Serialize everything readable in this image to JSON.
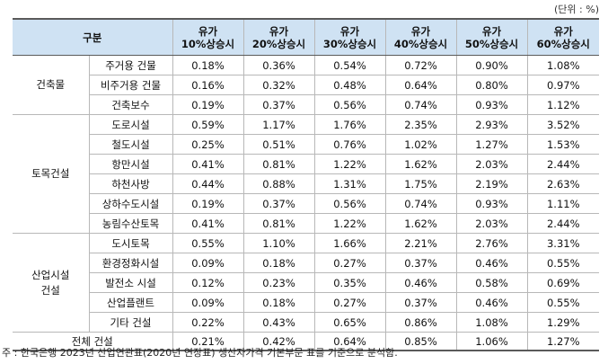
{
  "unit_label": "(단위 : %)",
  "header": {
    "category": "구분",
    "columns": [
      {
        "l1": "유가",
        "l2": "10%상승시"
      },
      {
        "l1": "유가",
        "l2": "20%상승시"
      },
      {
        "l1": "유가",
        "l2": "30%상승시"
      },
      {
        "l1": "유가",
        "l2": "40%상승시"
      },
      {
        "l1": "유가",
        "l2": "50%상승시"
      },
      {
        "l1": "유가",
        "l2": "60%상승시"
      }
    ]
  },
  "groups": [
    {
      "name": "건축물",
      "rows": [
        {
          "label": "주거용 건물",
          "values": [
            "0.18%",
            "0.36%",
            "0.54%",
            "0.72%",
            "0.90%",
            "1.08%"
          ]
        },
        {
          "label": "비주거용 건물",
          "values": [
            "0.16%",
            "0.32%",
            "0.48%",
            "0.64%",
            "0.80%",
            "0.97%"
          ]
        },
        {
          "label": "건축보수",
          "values": [
            "0.19%",
            "0.37%",
            "0.56%",
            "0.74%",
            "0.93%",
            "1.12%"
          ]
        }
      ]
    },
    {
      "name": "토목건설",
      "rows": [
        {
          "label": "도로시설",
          "values": [
            "0.59%",
            "1.17%",
            "1.76%",
            "2.35%",
            "2.93%",
            "3.52%"
          ]
        },
        {
          "label": "철도시설",
          "values": [
            "0.25%",
            "0.51%",
            "0.76%",
            "1.02%",
            "1.27%",
            "1.53%"
          ]
        },
        {
          "label": "항만시설",
          "values": [
            "0.41%",
            "0.81%",
            "1.22%",
            "1.62%",
            "2.03%",
            "2.44%"
          ]
        },
        {
          "label": "하천사방",
          "values": [
            "0.44%",
            "0.88%",
            "1.31%",
            "1.75%",
            "2.19%",
            "2.63%"
          ]
        },
        {
          "label": "상하수도시설",
          "values": [
            "0.19%",
            "0.37%",
            "0.56%",
            "0.74%",
            "0.93%",
            "1.11%"
          ]
        },
        {
          "label": "농림수산토목",
          "values": [
            "0.41%",
            "0.81%",
            "1.22%",
            "1.62%",
            "2.03%",
            "2.44%"
          ]
        }
      ]
    },
    {
      "name_l1": "산업시설",
      "name_l2": "건설",
      "rows": [
        {
          "label": "도시토목",
          "values": [
            "0.55%",
            "1.10%",
            "1.66%",
            "2.21%",
            "2.76%",
            "3.31%"
          ]
        },
        {
          "label": "환경정화시설",
          "values": [
            "0.09%",
            "0.18%",
            "0.27%",
            "0.37%",
            "0.46%",
            "0.55%"
          ]
        },
        {
          "label": "발전소 시설",
          "values": [
            "0.12%",
            "0.23%",
            "0.35%",
            "0.46%",
            "0.58%",
            "0.69%"
          ]
        },
        {
          "label": "산업플랜트",
          "values": [
            "0.09%",
            "0.18%",
            "0.27%",
            "0.37%",
            "0.46%",
            "0.55%"
          ]
        },
        {
          "label": "기타 건설",
          "values": [
            "0.22%",
            "0.43%",
            "0.65%",
            "0.86%",
            "1.08%",
            "1.29%"
          ]
        }
      ]
    }
  ],
  "total": {
    "label": "전체 건설",
    "values": [
      "0.21%",
      "0.42%",
      "0.64%",
      "0.85%",
      "1.06%",
      "1.27%"
    ]
  },
  "note": "주 : 한국은행 2023년 산업연관표(2020년 연장표) 생산자가격 기본부문 표를 기준으로 분석함."
}
